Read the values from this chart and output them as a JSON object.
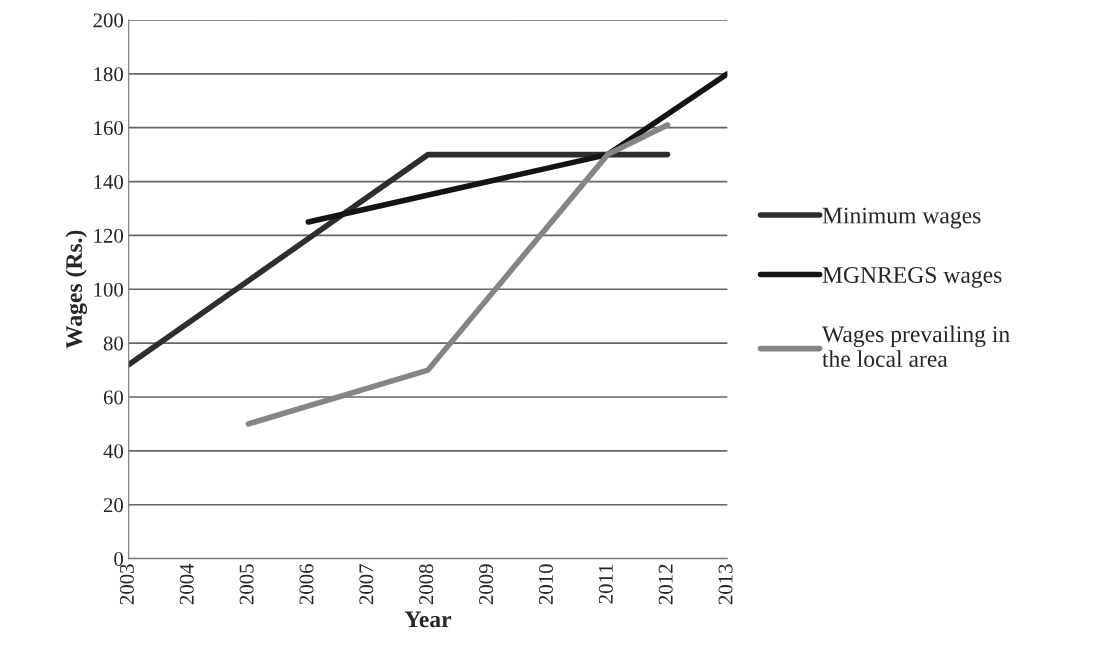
{
  "chart_data": {
    "type": "line",
    "xlabel": "Year",
    "ylabel": "Wages (Rs.)",
    "series": [
      {
        "name": "Minimum wages",
        "color": "#2e2e2e",
        "x": [
          2003,
          2008,
          2012
        ],
        "values": [
          72,
          150,
          150
        ]
      },
      {
        "name": "MGNREGS wages",
        "color": "#141414",
        "x": [
          2006,
          2011,
          2012,
          2013
        ],
        "values": [
          125,
          150,
          165,
          180
        ]
      },
      {
        "name": "Wages prevailing in\nthe local area",
        "color": "#858585",
        "x": [
          2005,
          2008,
          2011,
          2012
        ],
        "values": [
          50,
          70,
          150,
          161
        ]
      }
    ],
    "xlim": [
      2003,
      2013
    ],
    "xticks": [
      2003,
      2004,
      2005,
      2006,
      2007,
      2008,
      2009,
      2010,
      2011,
      2012,
      2013
    ],
    "ylim": [
      0,
      200
    ],
    "yticks": [
      0,
      20,
      40,
      60,
      80,
      100,
      120,
      140,
      160,
      180,
      200
    ],
    "grid": "y",
    "legend": "right",
    "line_style": "solid",
    "marker": "none"
  }
}
